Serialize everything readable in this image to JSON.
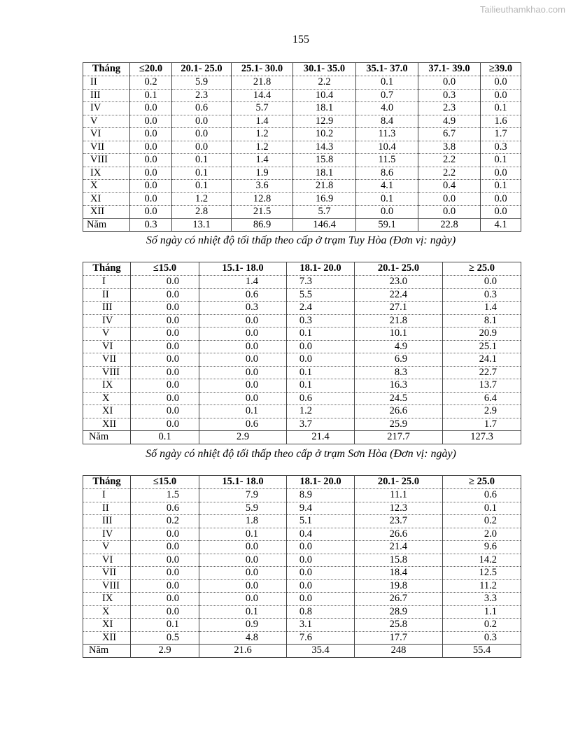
{
  "watermark": "Tailieuthamkhao.com",
  "page_number": "155",
  "tables": [
    {
      "headers": [
        "Tháng",
        "≤20.0",
        "20.1- 25.0",
        "25.1- 30.0",
        "30.1- 35.0",
        "35.1- 37.0",
        "37.1- 39.0",
        "≥39.0"
      ],
      "rows": [
        [
          "II",
          "0.2",
          "5.9",
          "21.8",
          "2.2",
          "0.1",
          "0.0",
          "0.0"
        ],
        [
          "III",
          "0.1",
          "2.3",
          "14.4",
          "10.4",
          "0.7",
          "0.3",
          "0.0"
        ],
        [
          "IV",
          "0.0",
          "0.6",
          "5.7",
          "18.1",
          "4.0",
          "2.3",
          "0.1"
        ],
        [
          "V",
          "0.0",
          "0.0",
          "1.4",
          "12.9",
          "8.4",
          "4.9",
          "1.6"
        ],
        [
          "VI",
          "0.0",
          "0.0",
          "1.2",
          "10.2",
          "11.3",
          "6.7",
          "1.7"
        ],
        [
          "VII",
          "0.0",
          "0.0",
          "1.2",
          "14.3",
          "10.4",
          "3.8",
          "0.3"
        ],
        [
          "VIII",
          "0.0",
          "0.1",
          "1.4",
          "15.8",
          "11.5",
          "2.2",
          "0.1"
        ],
        [
          "IX",
          "0.0",
          "0.1",
          "1.9",
          "18.1",
          "8.6",
          "2.2",
          "0.0"
        ],
        [
          "X",
          "0.0",
          "0.1",
          "3.6",
          "21.8",
          "4.1",
          "0.4",
          "0.1"
        ],
        [
          "XI",
          "0.0",
          "1.2",
          "12.8",
          "16.9",
          "0.1",
          "0.0",
          "0.0"
        ],
        [
          "XII",
          "0.0",
          "2.8",
          "21.5",
          "5.7",
          "0.0",
          "0.0",
          "0.0"
        ],
        [
          "Năm",
          "0.3",
          "13.1",
          "86.9",
          "146.4",
          "59.1",
          "22.8",
          "4.1"
        ]
      ],
      "caption": "Số ngày có nhiệt độ tối thấp theo cấp ở trạm Tuy Hòa (Đơn vị: ngày)"
    },
    {
      "headers": [
        "Tháng",
        "≤15.0",
        "15.1- 18.0",
        "18.1- 20.0",
        "20.1- 25.0",
        "≥ 25.0"
      ],
      "rows": [
        [
          "I",
          "0.0",
          "1.4",
          "7.3",
          "23.0",
          "0.0"
        ],
        [
          "II",
          "0.0",
          "0.6",
          "5.5",
          "22.4",
          "0.3"
        ],
        [
          "III",
          "0.0",
          "0.3",
          "2.4",
          "27.1",
          "1.4"
        ],
        [
          "IV",
          "0.0",
          "0.0",
          "0.3",
          "21.8",
          "8.1"
        ],
        [
          "V",
          "0.0",
          "0.0",
          "0.1",
          "10.1",
          "20.9"
        ],
        [
          "VI",
          "0.0",
          "0.0",
          "0.0",
          "4.9",
          "25.1"
        ],
        [
          "VII",
          "0.0",
          "0.0",
          "0.0",
          "6.9",
          "24.1"
        ],
        [
          "VIII",
          "0.0",
          "0.0",
          "0.1",
          "8.3",
          "22.7"
        ],
        [
          "IX",
          "0.0",
          "0.0",
          "0.1",
          "16.3",
          "13.7"
        ],
        [
          "X",
          "0.0",
          "0.0",
          "0.6",
          "24.5",
          "6.4"
        ],
        [
          "XI",
          "0.0",
          "0.1",
          "1.2",
          "26.6",
          "2.9"
        ],
        [
          "XII",
          "0.0",
          "0.6",
          "3.7",
          "25.9",
          "1.7"
        ],
        [
          "Năm",
          "0.1",
          "2.9",
          "21.4",
          "217.7",
          "127.3"
        ]
      ],
      "caption": "Số ngày có nhiệt độ tối thấp theo cấp ở trạm Sơn Hòa (Đơn vị: ngày)"
    },
    {
      "headers": [
        "Tháng",
        "≤15.0",
        "15.1- 18.0",
        "18.1- 20.0",
        "20.1- 25.0",
        "≥ 25.0"
      ],
      "rows": [
        [
          "I",
          "1.5",
          "7.9",
          "8.9",
          "11.1",
          "0.6"
        ],
        [
          "II",
          "0.6",
          "5.9",
          "9.4",
          "12.3",
          "0.1"
        ],
        [
          "III",
          "0.2",
          "1.8",
          "5.1",
          "23.7",
          "0.2"
        ],
        [
          "IV",
          "0.0",
          "0.1",
          "0.4",
          "26.6",
          "2.0"
        ],
        [
          "V",
          "0.0",
          "0.0",
          "0.0",
          "21.4",
          "9.6"
        ],
        [
          "VI",
          "0.0",
          "0.0",
          "0.0",
          "15.8",
          "14.2"
        ],
        [
          "VII",
          "0.0",
          "0.0",
          "0.0",
          "18.4",
          "12.5"
        ],
        [
          "VIII",
          "0.0",
          "0.0",
          "0.0",
          "19.8",
          "11.2"
        ],
        [
          "IX",
          "0.0",
          "0.0",
          "0.0",
          "26.7",
          "3.3"
        ],
        [
          "X",
          "0.0",
          "0.1",
          "0.8",
          "28.9",
          "1.1"
        ],
        [
          "XI",
          "0.1",
          "0.9",
          "3.1",
          "25.8",
          "0.2"
        ],
        [
          "XII",
          "0.5",
          "4.8",
          "7.6",
          "17.7",
          "0.3"
        ],
        [
          "Năm",
          "2.9",
          "21.6",
          "35.4",
          "248",
          "55.4"
        ]
      ]
    }
  ]
}
